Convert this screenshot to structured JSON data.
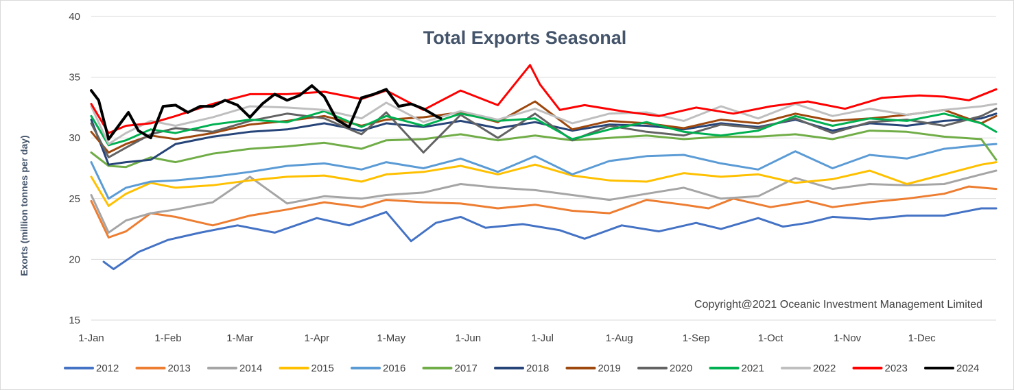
{
  "chart_data": {
    "type": "line",
    "title": "Total Exports Seasonal",
    "ylabel": "Exorts (million tonnes per day)",
    "xlabel": "",
    "ylim": [
      15,
      40
    ],
    "yticks": [
      15,
      20,
      25,
      30,
      35,
      40
    ],
    "x_axis_unit": "day of year",
    "xlim": [
      1,
      366
    ],
    "xtick_labels": [
      "1-Jan",
      "1-Feb",
      "1-Mar",
      "1-Apr",
      "1-May",
      "1-Jun",
      "1-Jul",
      "1-Aug",
      "1-Sep",
      "1-Oct",
      "1-Nov",
      "1-Dec"
    ],
    "xtick_days": [
      1,
      32,
      61,
      92,
      122,
      153,
      183,
      214,
      245,
      275,
      306,
      336
    ],
    "grid": {
      "horizontal": true,
      "vertical": false
    },
    "legend_position": "bottom",
    "annotation": "Copyright@2021 Oceanic Investment Management Limited",
    "series": [
      {
        "name": "2012",
        "color": "#4472c4",
        "x": [
          6,
          10,
          20,
          32,
          45,
          60,
          75,
          92,
          105,
          120,
          130,
          140,
          150,
          160,
          175,
          190,
          200,
          215,
          230,
          245,
          255,
          270,
          280,
          290,
          300,
          315,
          330,
          345,
          360,
          366
        ],
        "y": [
          19.8,
          19.2,
          20.6,
          21.6,
          22.2,
          22.8,
          22.2,
          23.4,
          22.8,
          23.9,
          21.5,
          23.0,
          23.5,
          22.6,
          22.9,
          22.4,
          21.7,
          22.8,
          22.3,
          23.0,
          22.5,
          23.4,
          22.7,
          23.0,
          23.5,
          23.3,
          23.6,
          23.6,
          24.2,
          24.2
        ]
      },
      {
        "name": "2013",
        "color": "#ed7d31",
        "x": [
          1,
          8,
          15,
          25,
          35,
          50,
          65,
          80,
          95,
          110,
          120,
          135,
          150,
          165,
          180,
          195,
          210,
          225,
          240,
          250,
          260,
          275,
          290,
          300,
          315,
          330,
          345,
          355,
          366
        ],
        "y": [
          24.8,
          21.8,
          22.3,
          23.8,
          23.5,
          22.8,
          23.6,
          24.1,
          24.7,
          24.3,
          24.9,
          24.7,
          24.6,
          24.2,
          24.5,
          24.0,
          23.8,
          24.9,
          24.5,
          24.2,
          25.0,
          24.3,
          24.8,
          24.3,
          24.7,
          25.0,
          25.4,
          26.0,
          25.8
        ]
      },
      {
        "name": "2014",
        "color": "#a5a5a5",
        "x": [
          1,
          8,
          15,
          25,
          35,
          50,
          65,
          80,
          95,
          110,
          120,
          135,
          150,
          165,
          180,
          195,
          210,
          225,
          240,
          255,
          270,
          285,
          300,
          315,
          330,
          345,
          360,
          366
        ],
        "y": [
          25.3,
          22.2,
          23.2,
          23.8,
          24.1,
          24.7,
          26.8,
          24.6,
          25.2,
          25.0,
          25.3,
          25.5,
          26.2,
          25.9,
          25.7,
          25.3,
          24.9,
          25.4,
          25.9,
          25.0,
          25.2,
          26.7,
          25.8,
          26.2,
          26.1,
          26.2,
          27.0,
          27.3
        ]
      },
      {
        "name": "2015",
        "color": "#ffc000",
        "x": [
          1,
          8,
          15,
          25,
          35,
          50,
          65,
          80,
          95,
          110,
          120,
          135,
          150,
          165,
          180,
          195,
          210,
          225,
          240,
          255,
          270,
          285,
          300,
          315,
          330,
          345,
          360,
          366
        ],
        "y": [
          26.8,
          24.4,
          25.4,
          26.3,
          25.9,
          26.1,
          26.5,
          26.8,
          26.9,
          26.4,
          27.0,
          27.2,
          27.7,
          27.0,
          27.8,
          26.9,
          26.5,
          26.4,
          27.1,
          26.8,
          27.0,
          26.3,
          26.6,
          27.3,
          26.2,
          27.0,
          27.8,
          28.0
        ]
      },
      {
        "name": "2016",
        "color": "#5b9bd5",
        "x": [
          1,
          8,
          15,
          25,
          35,
          50,
          65,
          80,
          95,
          110,
          120,
          135,
          150,
          165,
          180,
          195,
          210,
          225,
          240,
          255,
          270,
          285,
          300,
          315,
          330,
          345,
          360,
          366
        ],
        "y": [
          28.0,
          25.0,
          25.9,
          26.4,
          26.5,
          26.8,
          27.2,
          27.7,
          27.9,
          27.4,
          28.0,
          27.5,
          28.3,
          27.2,
          28.5,
          27.0,
          28.1,
          28.5,
          28.6,
          27.9,
          27.4,
          28.9,
          27.5,
          28.6,
          28.3,
          29.1,
          29.4,
          29.5
        ]
      },
      {
        "name": "2017",
        "color": "#70ad47",
        "x": [
          1,
          8,
          15,
          25,
          35,
          50,
          65,
          80,
          95,
          110,
          120,
          135,
          150,
          165,
          180,
          195,
          210,
          225,
          240,
          255,
          270,
          285,
          300,
          315,
          330,
          345,
          360,
          366
        ],
        "y": [
          28.8,
          27.7,
          27.6,
          28.4,
          28.0,
          28.7,
          29.1,
          29.3,
          29.6,
          29.1,
          29.8,
          29.9,
          30.3,
          29.8,
          30.2,
          29.8,
          30.0,
          30.2,
          29.9,
          30.1,
          30.1,
          30.3,
          29.9,
          30.6,
          30.5,
          30.1,
          29.9,
          28.2
        ]
      },
      {
        "name": "2018",
        "color": "#264478",
        "x": [
          1,
          8,
          15,
          25,
          35,
          50,
          65,
          80,
          95,
          110,
          120,
          135,
          150,
          165,
          180,
          195,
          210,
          225,
          240,
          255,
          270,
          285,
          300,
          315,
          330,
          345,
          360,
          366
        ],
        "y": [
          31.5,
          27.8,
          28.0,
          28.2,
          29.5,
          30.1,
          30.5,
          30.7,
          31.2,
          30.6,
          31.2,
          30.9,
          31.4,
          30.8,
          31.3,
          30.6,
          31.1,
          31.0,
          30.7,
          31.2,
          30.9,
          31.5,
          30.6,
          31.2,
          31.0,
          31.4,
          31.6,
          32.0
        ]
      },
      {
        "name": "2019",
        "color": "#9e480e",
        "x": [
          1,
          8,
          15,
          25,
          35,
          50,
          65,
          80,
          95,
          110,
          120,
          135,
          150,
          165,
          180,
          195,
          210,
          225,
          240,
          255,
          270,
          285,
          300,
          315,
          330,
          345,
          360,
          366
        ],
        "y": [
          30.5,
          28.8,
          29.5,
          30.2,
          29.9,
          30.4,
          31.1,
          31.4,
          31.8,
          31.0,
          31.5,
          31.7,
          32.1,
          31.3,
          33.0,
          30.7,
          31.4,
          31.2,
          30.8,
          31.5,
          31.2,
          32.0,
          31.4,
          31.6,
          31.9,
          32.3,
          31.2,
          31.8
        ]
      },
      {
        "name": "2020",
        "color": "#636363",
        "x": [
          1,
          8,
          15,
          25,
          35,
          50,
          65,
          80,
          95,
          110,
          120,
          135,
          150,
          165,
          180,
          195,
          210,
          225,
          240,
          255,
          270,
          285,
          300,
          315,
          330,
          345,
          360,
          366
        ],
        "y": [
          31.2,
          28.4,
          29.2,
          30.3,
          30.8,
          30.5,
          31.4,
          32.0,
          31.6,
          30.3,
          32.1,
          28.8,
          31.9,
          30.0,
          32.0,
          29.8,
          31.0,
          30.5,
          30.2,
          31.1,
          30.8,
          31.6,
          30.4,
          31.3,
          31.5,
          31.0,
          31.8,
          32.4
        ]
      },
      {
        "name": "2021",
        "color": "#00b050",
        "x": [
          1,
          8,
          15,
          25,
          35,
          50,
          65,
          80,
          95,
          110,
          120,
          135,
          150,
          165,
          180,
          195,
          210,
          225,
          240,
          255,
          270,
          285,
          300,
          315,
          330,
          345,
          360,
          366
        ],
        "y": [
          31.8,
          29.4,
          29.8,
          30.7,
          30.4,
          31.1,
          31.5,
          31.3,
          32.2,
          30.9,
          31.8,
          31.0,
          32.0,
          31.4,
          31.6,
          29.9,
          30.7,
          31.3,
          30.5,
          30.2,
          30.6,
          31.8,
          31.0,
          31.6,
          31.4,
          32.0,
          31.2,
          30.5
        ]
      },
      {
        "name": "2022",
        "color": "#bfbfbf",
        "x": [
          1,
          8,
          15,
          25,
          35,
          50,
          65,
          80,
          95,
          110,
          120,
          135,
          150,
          165,
          180,
          195,
          210,
          225,
          240,
          255,
          270,
          285,
          300,
          315,
          330,
          345,
          360,
          366
        ],
        "y": [
          32.6,
          29.5,
          30.4,
          31.4,
          31.0,
          31.7,
          32.6,
          32.5,
          32.3,
          31.6,
          32.9,
          31.3,
          32.2,
          31.5,
          32.4,
          31.2,
          32.0,
          32.1,
          31.4,
          32.6,
          31.6,
          32.8,
          31.8,
          32.4,
          31.9,
          32.3,
          32.6,
          32.8
        ]
      },
      {
        "name": "2023",
        "color": "#ff0000",
        "x": [
          1,
          8,
          15,
          25,
          35,
          50,
          65,
          80,
          95,
          110,
          120,
          135,
          150,
          165,
          178,
          182,
          190,
          200,
          215,
          230,
          245,
          260,
          275,
          290,
          305,
          320,
          335,
          345,
          355,
          366
        ],
        "y": [
          32.8,
          30.4,
          31.0,
          31.2,
          31.8,
          32.8,
          33.6,
          33.6,
          33.8,
          33.2,
          33.9,
          32.3,
          33.9,
          32.7,
          36.0,
          34.4,
          32.3,
          32.7,
          32.2,
          31.8,
          32.5,
          32.0,
          32.6,
          33.0,
          32.4,
          33.3,
          33.5,
          33.4,
          33.1,
          34.0
        ]
      },
      {
        "name": "2024",
        "color": "#000000",
        "x": [
          1,
          4,
          8,
          12,
          16,
          20,
          25,
          30,
          35,
          40,
          45,
          50,
          55,
          60,
          65,
          70,
          75,
          80,
          85,
          90,
          95,
          100,
          105,
          110,
          115,
          120,
          125,
          130,
          135,
          140,
          142
        ],
        "y": [
          33.9,
          33.1,
          29.9,
          31.0,
          32.1,
          30.6,
          30.0,
          32.6,
          32.7,
          32.1,
          32.6,
          32.6,
          33.1,
          32.7,
          31.7,
          32.8,
          33.6,
          33.1,
          33.5,
          34.3,
          33.4,
          31.5,
          30.9,
          33.3,
          33.6,
          34.0,
          32.6,
          32.8,
          32.4,
          31.8,
          31.6
        ]
      }
    ]
  }
}
